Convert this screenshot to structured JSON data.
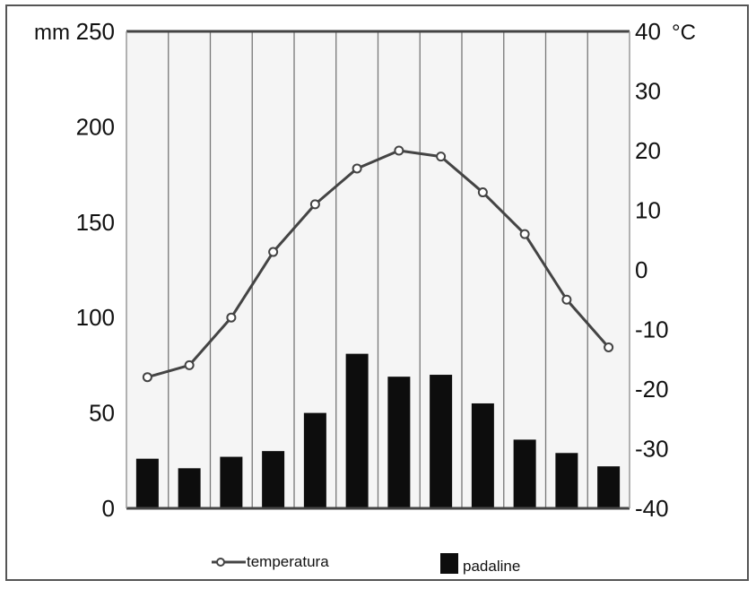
{
  "chart_data": {
    "type": "bar+line",
    "categories": [
      "",
      "",
      "",
      "",
      "",
      "",
      "",
      "",
      "",
      "",
      "",
      ""
    ],
    "series": [
      {
        "name": "padaline",
        "type": "bar",
        "axis": "left",
        "values": [
          26,
          21,
          27,
          30,
          50,
          81,
          69,
          70,
          55,
          36,
          29,
          22
        ]
      },
      {
        "name": "temperatura",
        "type": "line",
        "axis": "right",
        "values": [
          -18,
          -16,
          -8,
          3,
          11,
          17,
          20,
          19,
          13,
          6,
          -5,
          -13
        ]
      }
    ],
    "left_axis": {
      "unit": "mm",
      "ylim": [
        0,
        250
      ],
      "ticks": [
        "0",
        "50",
        "100",
        "150",
        "200",
        "250"
      ]
    },
    "right_axis": {
      "unit": "°C",
      "ylim": [
        -40,
        40
      ],
      "ticks": [
        "-40",
        "-30",
        "-20",
        "-10",
        "0",
        "10",
        "20",
        "30",
        "40"
      ]
    },
    "grid": "vertical",
    "legend": {
      "position": "bottom",
      "items": [
        "temperatura",
        "padaline"
      ]
    },
    "colors": {
      "bar": "#0d0d0d",
      "line": "#444444",
      "plot_background": "#f5f5f5",
      "grid": "#777777"
    }
  }
}
